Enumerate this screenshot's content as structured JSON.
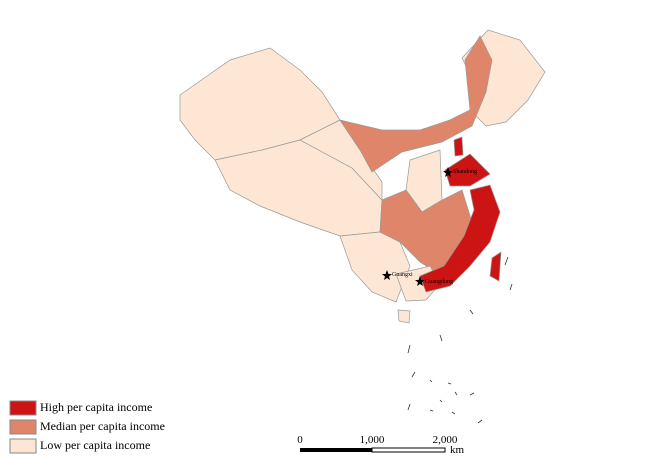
{
  "legend": {
    "items": [
      {
        "label": "High per capita income",
        "color": "#cc1414"
      },
      {
        "label": "Median per capita income",
        "color": "#df866a"
      },
      {
        "label": "Low per capita income",
        "color": "#fde6d3"
      }
    ]
  },
  "map": {
    "labels": [
      "Shandong",
      "Guangxi",
      "Guangdong"
    ]
  },
  "scale_bar": {
    "ticks": [
      "0",
      "1,000",
      "2,000"
    ],
    "unit": "km"
  }
}
